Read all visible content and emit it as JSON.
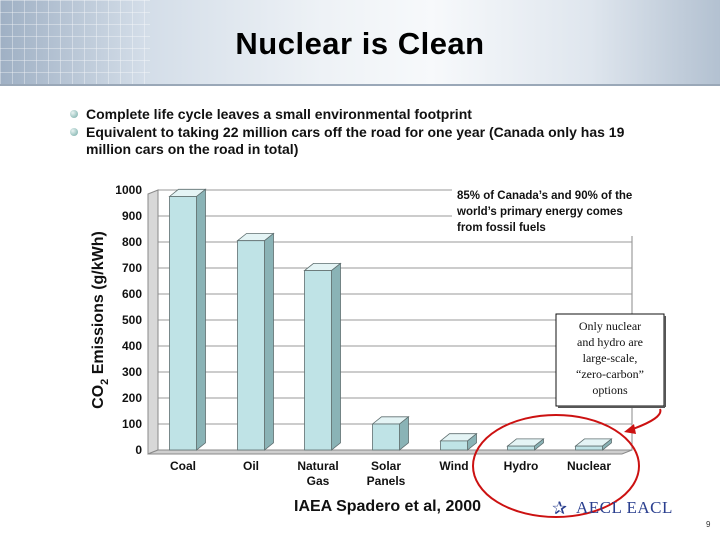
{
  "slide": {
    "title": "Nuclear is Clean",
    "bullets": [
      "Complete life cycle leaves a small environmental footprint",
      "Equivalent to taking 22 million cars off the road for one year (Canada only has 19 million cars on the road in total)"
    ],
    "source": "IAEA Spadero et al, 2000",
    "logo_text": "AECL EACL",
    "logo_icon": "star-swoosh-icon",
    "page_number": "9"
  },
  "chart_data": {
    "type": "bar",
    "ylabel": "CO2 Emissions (g/kWh)",
    "ylabel_main": "CO",
    "ylabel_sub": "2",
    "ylabel_rest": " Emissions (g/kWh)",
    "xlabel": "",
    "ylim": [
      0,
      1000
    ],
    "yticks": [
      "0",
      "100",
      "200",
      "300",
      "400",
      "500",
      "600",
      "700",
      "800",
      "900",
      "1000"
    ],
    "categories": [
      "Coal",
      "Oil",
      "Natural Gas",
      "Solar Panels",
      "Wind",
      "Hydro",
      "Nuclear"
    ],
    "category_lines": [
      [
        "Coal"
      ],
      [
        "Oil"
      ],
      [
        "Natural",
        "Gas"
      ],
      [
        "Solar",
        "Panels"
      ],
      [
        "Wind"
      ],
      [
        "Hydro"
      ],
      [
        "Nuclear"
      ]
    ],
    "values": [
      975,
      805,
      690,
      100,
      35,
      15,
      15
    ],
    "grid": true,
    "bar_color": "#bfe3e6",
    "annotations": {
      "fossil_note": "85% of Canada's and 90% of the world's primary energy comes from fossil fuels",
      "fossil_note_lines": [
        "85% of Canada’s and 90% of the",
        "world’s primary energy comes",
        "from fossil fuels"
      ],
      "zero_carbon_note": "Only nuclear and hydro are large-scale, “zero-carbon” options",
      "zero_carbon_note_lines": [
        "Only nuclear",
        "and hydro are",
        "large-scale,",
        "“zero-carbon”",
        "options"
      ],
      "highlight_color": "#cc1111"
    }
  }
}
